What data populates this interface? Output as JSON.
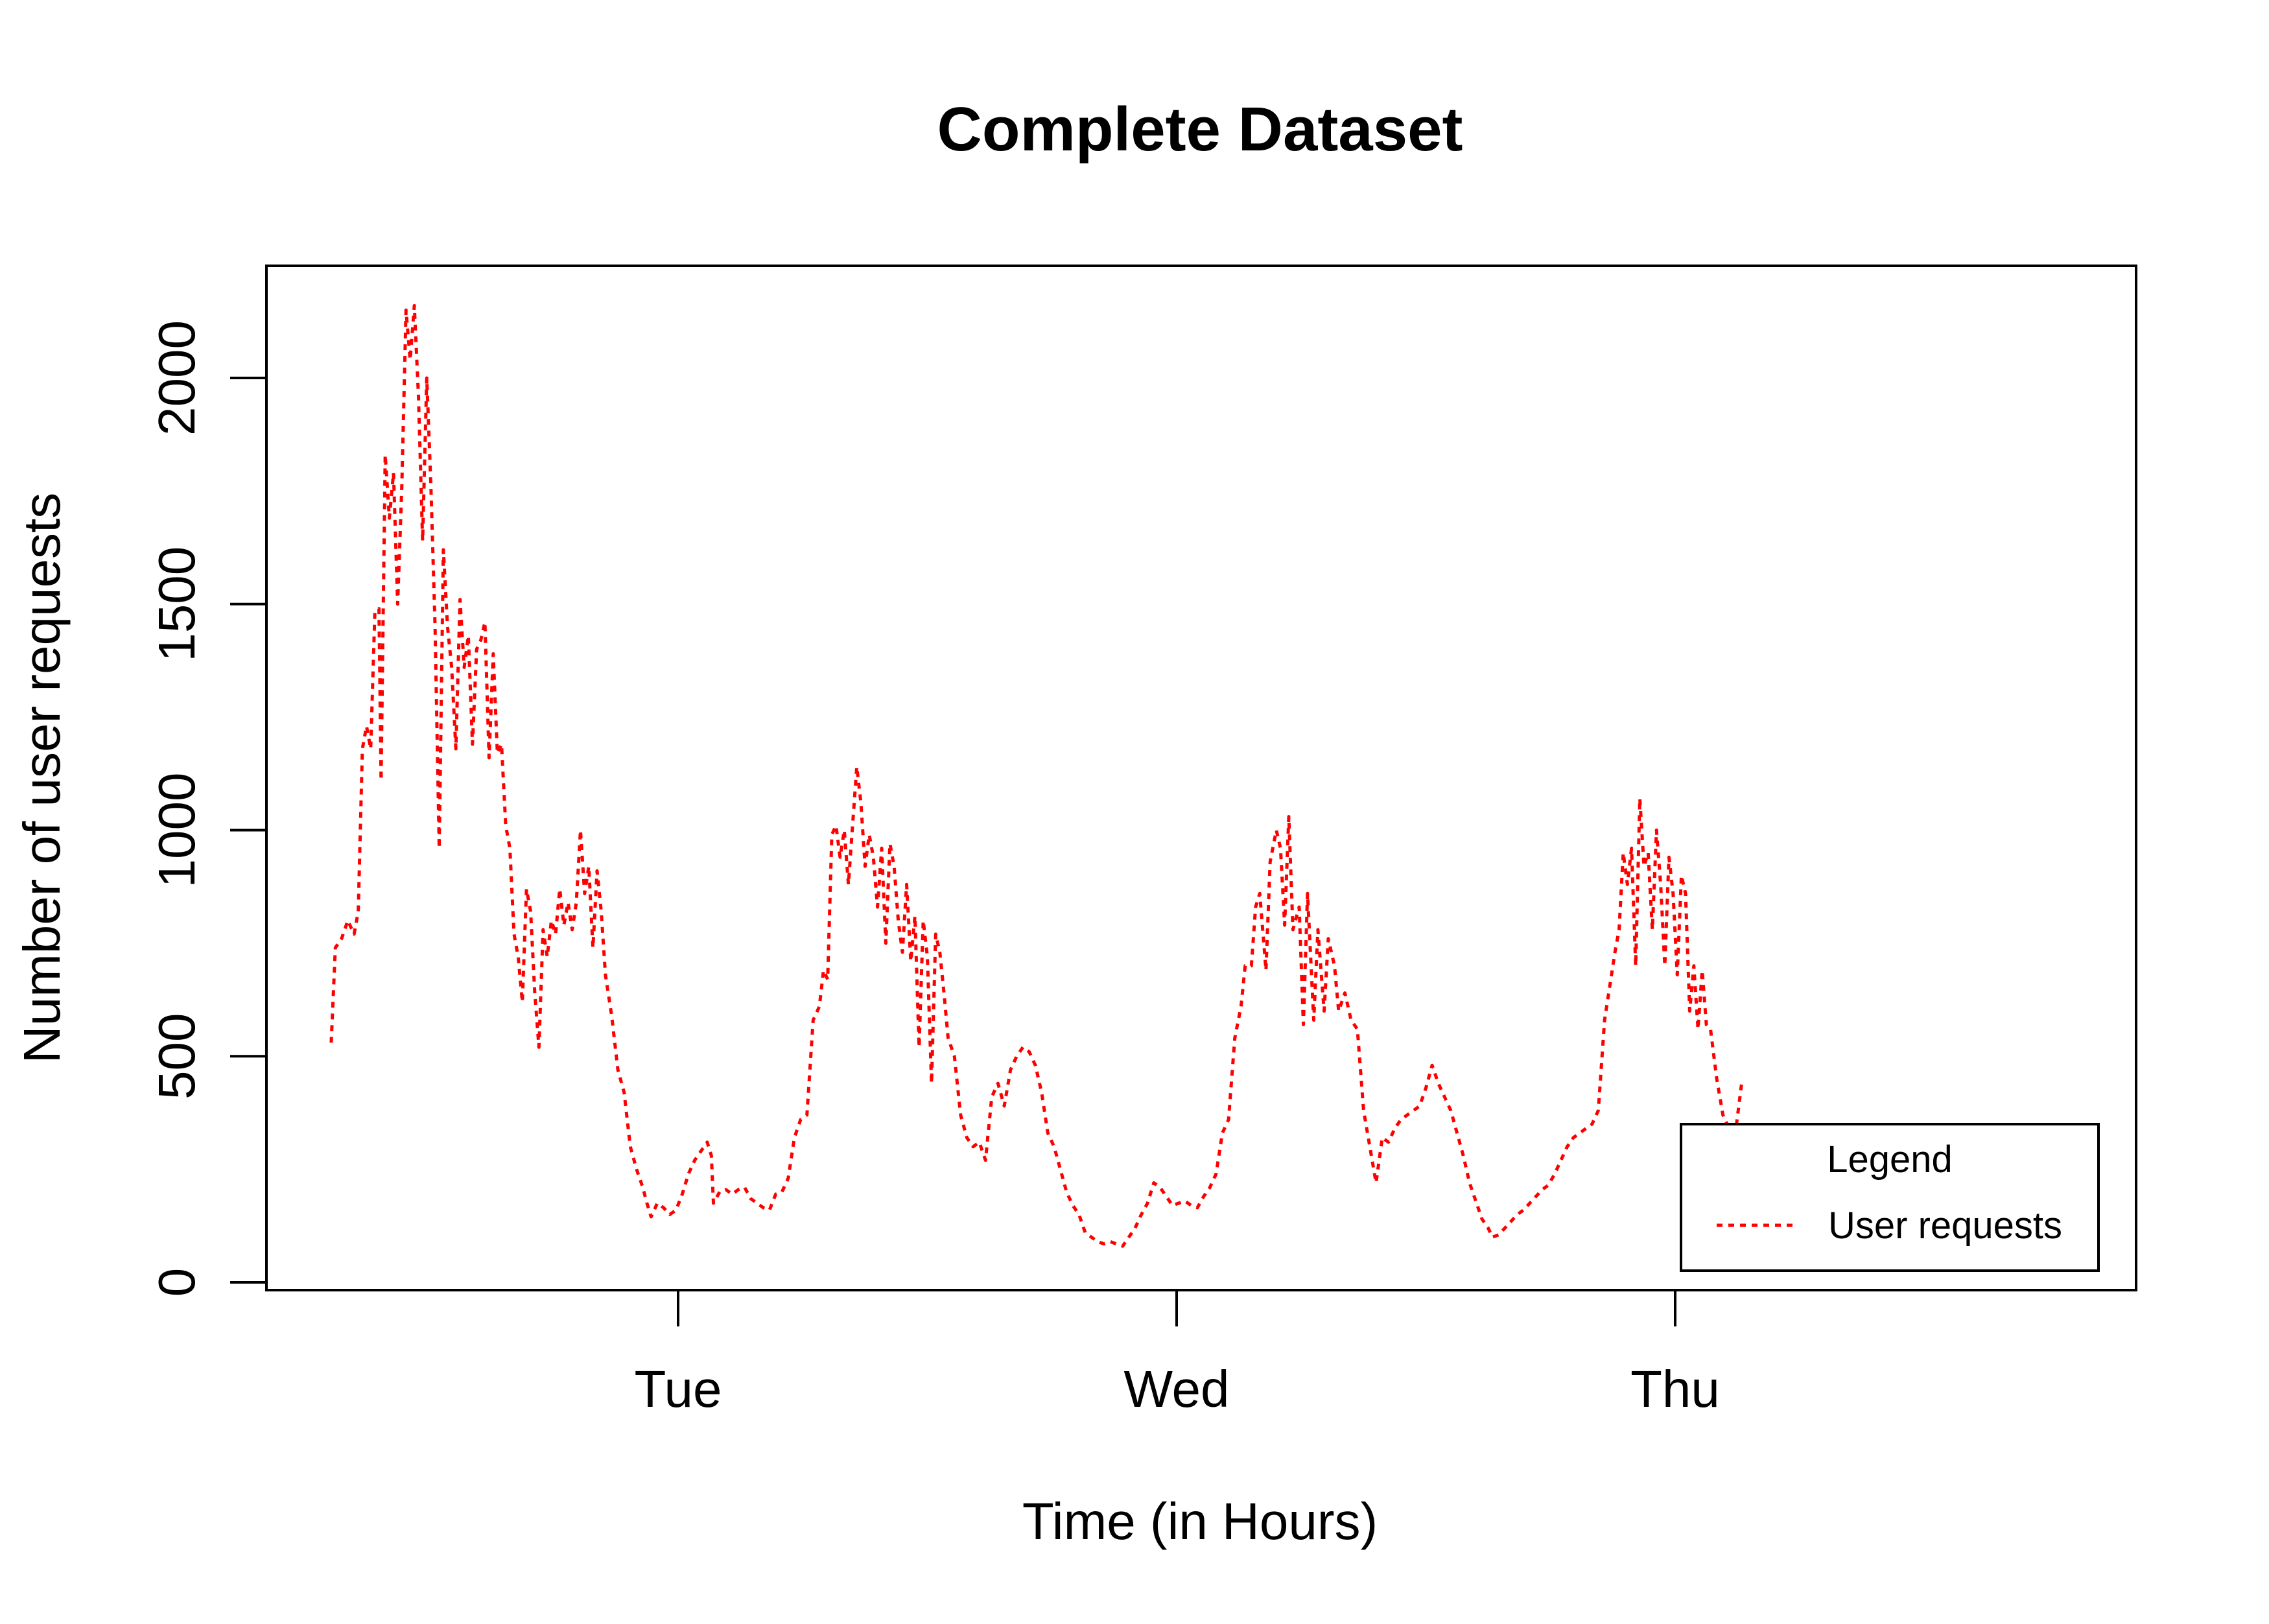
{
  "chart_data": {
    "type": "line",
    "title": "Complete Dataset",
    "xlabel": "Time (in Hours)",
    "ylabel": "Number of user requests",
    "x_unit": "hours from Monday 00:00",
    "x_ticks": [
      {
        "label": "Tue",
        "value": 24
      },
      {
        "label": "Wed",
        "value": 48
      },
      {
        "label": "Thu",
        "value": 72
      }
    ],
    "xlim": [
      4,
      94
    ],
    "ylim": [
      0,
      2250
    ],
    "y_ticks": [
      0,
      500,
      1000,
      1500,
      2000
    ],
    "grid": false,
    "legend": {
      "title": "Legend",
      "position": "bottom-right",
      "entries": [
        "User requests"
      ]
    },
    "series": [
      {
        "name": "User requests",
        "color": "#ff0000",
        "line_style": "dotted",
        "points": [
          [
            7.3,
            530
          ],
          [
            7.5,
            740
          ],
          [
            7.8,
            760
          ],
          [
            8.1,
            800
          ],
          [
            8.4,
            770
          ],
          [
            8.6,
            820
          ],
          [
            8.8,
            1180
          ],
          [
            9.0,
            1230
          ],
          [
            9.2,
            1180
          ],
          [
            9.4,
            1480
          ],
          [
            9.6,
            1490
          ],
          [
            9.7,
            1110
          ],
          [
            9.9,
            1830
          ],
          [
            10.1,
            1690
          ],
          [
            10.3,
            1790
          ],
          [
            10.5,
            1500
          ],
          [
            10.7,
            1760
          ],
          [
            10.9,
            2150
          ],
          [
            11.1,
            2040
          ],
          [
            11.3,
            2160
          ],
          [
            11.5,
            1960
          ],
          [
            11.7,
            1640
          ],
          [
            11.9,
            2000
          ],
          [
            12.1,
            1760
          ],
          [
            12.3,
            1450
          ],
          [
            12.5,
            960
          ],
          [
            12.7,
            1620
          ],
          [
            12.9,
            1450
          ],
          [
            13.1,
            1360
          ],
          [
            13.3,
            1180
          ],
          [
            13.5,
            1510
          ],
          [
            13.7,
            1360
          ],
          [
            13.9,
            1430
          ],
          [
            14.1,
            1190
          ],
          [
            14.3,
            1400
          ],
          [
            14.5,
            1420
          ],
          [
            14.7,
            1460
          ],
          [
            14.9,
            1160
          ],
          [
            15.1,
            1390
          ],
          [
            15.3,
            1170
          ],
          [
            15.5,
            1190
          ],
          [
            15.7,
            1010
          ],
          [
            15.9,
            960
          ],
          [
            16.1,
            770
          ],
          [
            16.3,
            720
          ],
          [
            16.5,
            620
          ],
          [
            16.7,
            870
          ],
          [
            16.9,
            820
          ],
          [
            17.1,
            640
          ],
          [
            17.3,
            520
          ],
          [
            17.5,
            780
          ],
          [
            17.7,
            720
          ],
          [
            17.9,
            800
          ],
          [
            18.1,
            770
          ],
          [
            18.3,
            870
          ],
          [
            18.5,
            790
          ],
          [
            18.7,
            840
          ],
          [
            18.9,
            780
          ],
          [
            19.1,
            840
          ],
          [
            19.3,
            1000
          ],
          [
            19.5,
            860
          ],
          [
            19.7,
            920
          ],
          [
            19.9,
            740
          ],
          [
            20.1,
            910
          ],
          [
            20.3,
            820
          ],
          [
            20.5,
            680
          ],
          [
            20.8,
            590
          ],
          [
            21.1,
            470
          ],
          [
            21.4,
            420
          ],
          [
            21.7,
            300
          ],
          [
            22.0,
            250
          ],
          [
            22.3,
            210
          ],
          [
            22.5,
            175
          ],
          [
            22.7,
            145
          ],
          [
            23.0,
            175
          ],
          [
            23.3,
            165
          ],
          [
            23.6,
            150
          ],
          [
            23.9,
            160
          ],
          [
            24.2,
            195
          ],
          [
            24.5,
            240
          ],
          [
            24.8,
            270
          ],
          [
            25.1,
            290
          ],
          [
            25.4,
            310
          ],
          [
            25.6,
            280
          ],
          [
            25.7,
            175
          ],
          [
            26.0,
            200
          ],
          [
            26.3,
            205
          ],
          [
            26.6,
            195
          ],
          [
            26.9,
            205
          ],
          [
            27.2,
            210
          ],
          [
            27.5,
            185
          ],
          [
            27.8,
            175
          ],
          [
            28.1,
            165
          ],
          [
            28.4,
            160
          ],
          [
            28.7,
            195
          ],
          [
            29.0,
            200
          ],
          [
            29.3,
            230
          ],
          [
            29.6,
            320
          ],
          [
            29.9,
            360
          ],
          [
            30.2,
            370
          ],
          [
            30.5,
            580
          ],
          [
            30.8,
            610
          ],
          [
            31.0,
            690
          ],
          [
            31.2,
            670
          ],
          [
            31.4,
            990
          ],
          [
            31.6,
            1010
          ],
          [
            31.8,
            940
          ],
          [
            32.0,
            1000
          ],
          [
            32.2,
            880
          ],
          [
            32.4,
            1010
          ],
          [
            32.6,
            1140
          ],
          [
            32.8,
            1060
          ],
          [
            33.0,
            920
          ],
          [
            33.2,
            990
          ],
          [
            33.4,
            940
          ],
          [
            33.6,
            830
          ],
          [
            33.8,
            960
          ],
          [
            34.0,
            750
          ],
          [
            34.2,
            970
          ],
          [
            34.4,
            920
          ],
          [
            34.6,
            800
          ],
          [
            34.8,
            730
          ],
          [
            35.0,
            880
          ],
          [
            35.2,
            710
          ],
          [
            35.4,
            810
          ],
          [
            35.6,
            520
          ],
          [
            35.8,
            800
          ],
          [
            36.0,
            720
          ],
          [
            36.2,
            440
          ],
          [
            36.4,
            770
          ],
          [
            36.6,
            730
          ],
          [
            36.8,
            640
          ],
          [
            37.0,
            540
          ],
          [
            37.3,
            500
          ],
          [
            37.6,
            370
          ],
          [
            37.9,
            320
          ],
          [
            38.2,
            300
          ],
          [
            38.5,
            310
          ],
          [
            38.8,
            270
          ],
          [
            39.1,
            410
          ],
          [
            39.4,
            440
          ],
          [
            39.7,
            390
          ],
          [
            40.0,
            470
          ],
          [
            40.3,
            500
          ],
          [
            40.6,
            520
          ],
          [
            40.9,
            510
          ],
          [
            41.2,
            480
          ],
          [
            41.5,
            420
          ],
          [
            41.8,
            330
          ],
          [
            42.1,
            300
          ],
          [
            42.4,
            250
          ],
          [
            42.7,
            200
          ],
          [
            43.0,
            170
          ],
          [
            43.3,
            150
          ],
          [
            43.6,
            110
          ],
          [
            43.9,
            100
          ],
          [
            44.2,
            90
          ],
          [
            44.5,
            85
          ],
          [
            44.8,
            90
          ],
          [
            45.1,
            85
          ],
          [
            45.4,
            80
          ],
          [
            45.7,
            100
          ],
          [
            46.0,
            120
          ],
          [
            46.3,
            150
          ],
          [
            46.6,
            175
          ],
          [
            46.9,
            220
          ],
          [
            47.2,
            210
          ],
          [
            47.5,
            190
          ],
          [
            47.8,
            170
          ],
          [
            48.1,
            175
          ],
          [
            48.4,
            180
          ],
          [
            48.7,
            170
          ],
          [
            49.0,
            165
          ],
          [
            49.3,
            190
          ],
          [
            49.6,
            210
          ],
          [
            49.9,
            240
          ],
          [
            50.2,
            330
          ],
          [
            50.5,
            360
          ],
          [
            50.8,
            540
          ],
          [
            51.1,
            610
          ],
          [
            51.3,
            700
          ],
          [
            51.6,
            700
          ],
          [
            51.8,
            830
          ],
          [
            52.0,
            860
          ],
          [
            52.3,
            690
          ],
          [
            52.5,
            930
          ],
          [
            52.8,
            1000
          ],
          [
            53.0,
            960
          ],
          [
            53.2,
            790
          ],
          [
            53.4,
            1030
          ],
          [
            53.6,
            780
          ],
          [
            53.9,
            830
          ],
          [
            54.1,
            570
          ],
          [
            54.3,
            860
          ],
          [
            54.6,
            580
          ],
          [
            54.8,
            780
          ],
          [
            55.1,
            600
          ],
          [
            55.3,
            760
          ],
          [
            55.6,
            700
          ],
          [
            55.8,
            600
          ],
          [
            56.1,
            640
          ],
          [
            56.4,
            580
          ],
          [
            56.7,
            560
          ],
          [
            57.0,
            380
          ],
          [
            57.3,
            300
          ],
          [
            57.6,
            220
          ],
          [
            57.9,
            320
          ],
          [
            58.2,
            310
          ],
          [
            58.5,
            340
          ],
          [
            58.8,
            360
          ],
          [
            59.1,
            370
          ],
          [
            59.4,
            380
          ],
          [
            59.7,
            390
          ],
          [
            60.0,
            430
          ],
          [
            60.3,
            480
          ],
          [
            60.6,
            440
          ],
          [
            60.9,
            410
          ],
          [
            61.2,
            380
          ],
          [
            61.5,
            330
          ],
          [
            61.8,
            280
          ],
          [
            62.1,
            220
          ],
          [
            62.4,
            180
          ],
          [
            62.7,
            140
          ],
          [
            63.0,
            120
          ],
          [
            63.2,
            100
          ],
          [
            63.5,
            105
          ],
          [
            63.8,
            120
          ],
          [
            64.1,
            135
          ],
          [
            64.4,
            150
          ],
          [
            64.7,
            160
          ],
          [
            65.0,
            175
          ],
          [
            65.3,
            190
          ],
          [
            65.6,
            205
          ],
          [
            65.9,
            215
          ],
          [
            66.2,
            240
          ],
          [
            66.5,
            270
          ],
          [
            66.8,
            300
          ],
          [
            67.1,
            320
          ],
          [
            67.4,
            330
          ],
          [
            67.7,
            340
          ],
          [
            68.0,
            350
          ],
          [
            68.3,
            380
          ],
          [
            68.6,
            580
          ],
          [
            68.9,
            670
          ],
          [
            69.1,
            730
          ],
          [
            69.3,
            780
          ],
          [
            69.5,
            950
          ],
          [
            69.7,
            880
          ],
          [
            69.9,
            960
          ],
          [
            70.1,
            700
          ],
          [
            70.3,
            1070
          ],
          [
            70.5,
            920
          ],
          [
            70.7,
            950
          ],
          [
            70.9,
            780
          ],
          [
            71.1,
            1000
          ],
          [
            71.3,
            880
          ],
          [
            71.5,
            700
          ],
          [
            71.7,
            940
          ],
          [
            71.9,
            860
          ],
          [
            72.1,
            680
          ],
          [
            72.3,
            900
          ],
          [
            72.5,
            860
          ],
          [
            72.7,
            600
          ],
          [
            72.9,
            700
          ],
          [
            73.1,
            560
          ],
          [
            73.3,
            690
          ],
          [
            73.5,
            570
          ],
          [
            73.7,
            560
          ],
          [
            74.0,
            450
          ],
          [
            74.3,
            370
          ],
          [
            74.6,
            340
          ],
          [
            74.9,
            330
          ],
          [
            75.2,
            440
          ]
        ]
      }
    ]
  }
}
